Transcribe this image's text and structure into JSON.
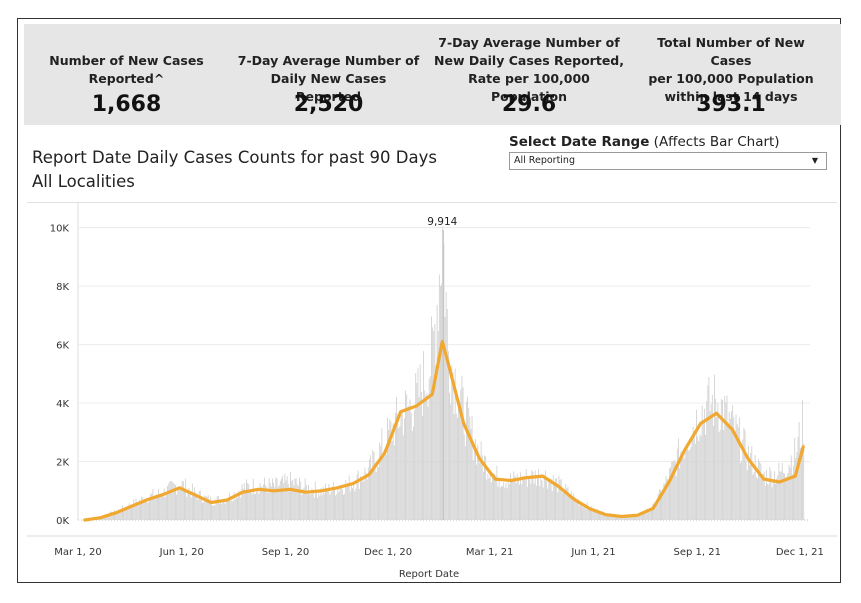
{
  "kpis": [
    {
      "label": "Number of New Cases\nReported^",
      "value": "1,668"
    },
    {
      "label": "7-Day Average Number of\nDaily New Cases Reported",
      "value": "2,520"
    },
    {
      "label": "7-Day Average Number of\nNew Daily Cases Reported,\nRate per 100,000 Population",
      "value": "29.6"
    },
    {
      "label": "Total Number of New Cases\nper 100,000 Population\nwithin last 14 days",
      "value": "393.1"
    }
  ],
  "chart_title_line1": "Report Date Daily Cases Counts for past 90 Days",
  "chart_title_line2": "All Localities",
  "date_range": {
    "label_bold": "Select Date Range",
    "label_rest": " (Affects Bar Chart)",
    "selected": "All Reporting"
  },
  "colors": {
    "bars": "#d3d3d3",
    "average_line": "#f0a830",
    "kpi_background": "#e6e6e6"
  },
  "chart_data": {
    "type": "bar",
    "xlabel": "Report Date",
    "ylabel": "",
    "ylim": [
      0,
      10500
    ],
    "y_ticks": [
      "0K",
      "2K",
      "4K",
      "6K",
      "8K",
      "10K"
    ],
    "x_tick_labels": [
      "Mar 1, 20",
      "Jun 1, 20",
      "Sep 1, 20",
      "Dec 1, 20",
      "Mar 1, 21",
      "Jun 1, 21",
      "Sep 1, 21",
      "Dec 1, 21"
    ],
    "x_range": [
      "2020-03-01",
      "2021-12-10"
    ],
    "peak_label": {
      "date": "2021-01-18",
      "value": 9914,
      "text": "9,914"
    },
    "series": [
      {
        "kind": "bars",
        "points": [
          [
            "2020-03-07",
            0
          ],
          [
            "2020-03-21",
            100
          ],
          [
            "2020-04-04",
            300
          ],
          [
            "2020-04-18",
            550
          ],
          [
            "2020-05-02",
            800
          ],
          [
            "2020-05-16",
            950
          ],
          [
            "2020-05-30",
            1250
          ],
          [
            "2020-06-13",
            900
          ],
          [
            "2020-06-27",
            650
          ],
          [
            "2020-07-11",
            750
          ],
          [
            "2020-07-25",
            1100
          ],
          [
            "2020-08-08",
            1200
          ],
          [
            "2020-08-22",
            1150
          ],
          [
            "2020-09-05",
            1300
          ],
          [
            "2020-09-19",
            1100
          ],
          [
            "2020-10-03",
            1000
          ],
          [
            "2020-10-17",
            1100
          ],
          [
            "2020-10-31",
            1300
          ],
          [
            "2020-11-14",
            1700
          ],
          [
            "2020-11-28",
            2700
          ],
          [
            "2020-12-12",
            3600
          ],
          [
            "2020-12-26",
            4100
          ],
          [
            "2021-01-09",
            5600
          ],
          [
            "2021-01-18",
            9914
          ],
          [
            "2021-01-23",
            5800
          ],
          [
            "2021-02-06",
            3600
          ],
          [
            "2021-02-20",
            2200
          ],
          [
            "2021-03-06",
            1500
          ],
          [
            "2021-03-20",
            1350
          ],
          [
            "2021-04-03",
            1450
          ],
          [
            "2021-04-17",
            1550
          ],
          [
            "2021-05-01",
            1200
          ],
          [
            "2021-05-15",
            750
          ],
          [
            "2021-05-29",
            400
          ],
          [
            "2021-06-12",
            200
          ],
          [
            "2021-06-26",
            130
          ],
          [
            "2021-07-10",
            180
          ],
          [
            "2021-07-24",
            450
          ],
          [
            "2021-08-07",
            1500
          ],
          [
            "2021-08-21",
            2700
          ],
          [
            "2021-09-04",
            3700
          ],
          [
            "2021-09-18",
            4100
          ],
          [
            "2021-10-02",
            3200
          ],
          [
            "2021-10-16",
            2200
          ],
          [
            "2021-10-30",
            1500
          ],
          [
            "2021-11-13",
            1600
          ],
          [
            "2021-11-27",
            2300
          ],
          [
            "2021-12-04",
            3400
          ]
        ]
      },
      {
        "kind": "line",
        "name": "7-Day Average",
        "points": [
          [
            "2020-03-07",
            0
          ],
          [
            "2020-03-21",
            80
          ],
          [
            "2020-04-04",
            250
          ],
          [
            "2020-04-18",
            480
          ],
          [
            "2020-05-02",
            700
          ],
          [
            "2020-05-16",
            880
          ],
          [
            "2020-05-30",
            1100
          ],
          [
            "2020-06-13",
            850
          ],
          [
            "2020-06-27",
            600
          ],
          [
            "2020-07-11",
            680
          ],
          [
            "2020-07-25",
            950
          ],
          [
            "2020-08-08",
            1050
          ],
          [
            "2020-08-22",
            1000
          ],
          [
            "2020-09-05",
            1050
          ],
          [
            "2020-09-19",
            950
          ],
          [
            "2020-10-03",
            1000
          ],
          [
            "2020-10-17",
            1100
          ],
          [
            "2020-10-31",
            1250
          ],
          [
            "2020-11-14",
            1550
          ],
          [
            "2020-11-28",
            2300
          ],
          [
            "2020-12-12",
            3700
          ],
          [
            "2020-12-26",
            3900
          ],
          [
            "2021-01-09",
            4300
          ],
          [
            "2021-01-18",
            6100
          ],
          [
            "2021-01-23",
            5400
          ],
          [
            "2021-02-06",
            3300
          ],
          [
            "2021-02-20",
            2100
          ],
          [
            "2021-03-06",
            1400
          ],
          [
            "2021-03-20",
            1350
          ],
          [
            "2021-04-03",
            1450
          ],
          [
            "2021-04-17",
            1500
          ],
          [
            "2021-05-01",
            1150
          ],
          [
            "2021-05-15",
            700
          ],
          [
            "2021-05-29",
            380
          ],
          [
            "2021-06-12",
            180
          ],
          [
            "2021-06-26",
            120
          ],
          [
            "2021-07-10",
            160
          ],
          [
            "2021-07-24",
            400
          ],
          [
            "2021-08-07",
            1300
          ],
          [
            "2021-08-21",
            2400
          ],
          [
            "2021-09-04",
            3300
          ],
          [
            "2021-09-18",
            3650
          ],
          [
            "2021-10-02",
            3100
          ],
          [
            "2021-10-16",
            2100
          ],
          [
            "2021-10-30",
            1400
          ],
          [
            "2021-11-13",
            1300
          ],
          [
            "2021-11-27",
            1500
          ],
          [
            "2021-12-04",
            2500
          ]
        ]
      }
    ]
  }
}
